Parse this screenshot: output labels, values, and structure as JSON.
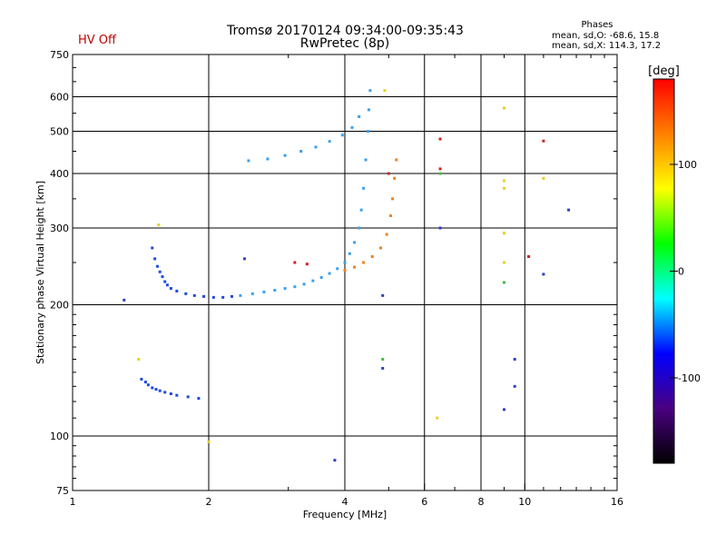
{
  "header": {
    "hv_status": "HV Off",
    "hv_color": "#c00000",
    "title": "Tromsø 20170124 09:34:00-09:35:43",
    "subtitle": "RwPretec (8p)"
  },
  "stats": {
    "title": "Phases",
    "line1": "mean, sd,O: -68.6, 15.8",
    "line2": "mean, sd,X: 114.3, 17.2"
  },
  "chart_data": {
    "type": "scatter",
    "xlabel": "Frequency [MHz]",
    "ylabel": "Stationary phase Virtual Height [km]",
    "x_scale": "log",
    "y_scale": "log",
    "xlim": [
      1,
      16
    ],
    "ylim": [
      75,
      750
    ],
    "x_ticks": [
      1,
      2,
      4,
      6,
      8,
      10,
      16
    ],
    "y_ticks": [
      75,
      100,
      200,
      300,
      400,
      500,
      600,
      750
    ],
    "grid": true,
    "colorbar": {
      "label": "[deg]",
      "range": [
        -180,
        180
      ],
      "ticks": [
        -100,
        0,
        100
      ],
      "colors": [
        "#000000",
        "#4b0082",
        "#0000ff",
        "#00ffff",
        "#00ff00",
        "#ffff00",
        "#ff8000",
        "#ff0000"
      ]
    },
    "series": [
      {
        "color": "#1e4ae0",
        "points": [
          [
            1.42,
            135
          ],
          [
            1.45,
            133
          ],
          [
            1.47,
            131
          ],
          [
            1.5,
            129
          ],
          [
            1.53,
            128
          ],
          [
            1.56,
            127
          ],
          [
            1.6,
            126
          ],
          [
            1.65,
            125
          ],
          [
            1.7,
            124
          ],
          [
            1.8,
            123
          ],
          [
            1.9,
            122
          ],
          [
            1.5,
            270
          ],
          [
            1.52,
            255
          ],
          [
            1.54,
            245
          ],
          [
            1.56,
            238
          ],
          [
            1.58,
            232
          ],
          [
            1.6,
            226
          ],
          [
            1.62,
            222
          ],
          [
            1.65,
            218
          ],
          [
            1.7,
            215
          ],
          [
            1.78,
            212
          ],
          [
            1.86,
            210
          ],
          [
            1.95,
            209
          ],
          [
            2.05,
            208
          ],
          [
            2.15,
            208
          ],
          [
            2.25,
            209
          ]
        ]
      },
      {
        "color": "#3aa0f0",
        "points": [
          [
            2.35,
            210
          ],
          [
            2.5,
            212
          ],
          [
            2.65,
            214
          ],
          [
            2.8,
            216
          ],
          [
            2.95,
            218
          ],
          [
            3.1,
            220
          ],
          [
            3.25,
            223
          ],
          [
            3.4,
            227
          ],
          [
            3.55,
            231
          ],
          [
            3.7,
            236
          ],
          [
            3.85,
            242
          ],
          [
            4.0,
            250
          ],
          [
            4.1,
            262
          ],
          [
            4.2,
            278
          ],
          [
            4.3,
            300
          ],
          [
            4.35,
            330
          ],
          [
            4.4,
            370
          ],
          [
            4.45,
            430
          ],
          [
            4.5,
            500
          ],
          [
            4.52,
            560
          ],
          [
            4.55,
            620
          ],
          [
            2.45,
            428
          ],
          [
            2.7,
            432
          ],
          [
            2.95,
            440
          ],
          [
            3.2,
            450
          ],
          [
            3.45,
            460
          ],
          [
            3.7,
            474
          ],
          [
            3.95,
            490
          ],
          [
            4.15,
            510
          ],
          [
            4.3,
            540
          ]
        ]
      },
      {
        "color": "#f08020",
        "points": [
          [
            4.0,
            240
          ],
          [
            4.2,
            244
          ],
          [
            4.4,
            250
          ],
          [
            4.6,
            258
          ],
          [
            4.8,
            270
          ],
          [
            4.95,
            290
          ],
          [
            5.05,
            320
          ],
          [
            5.1,
            350
          ],
          [
            5.15,
            390
          ],
          [
            5.2,
            430
          ]
        ]
      },
      {
        "color": "#d02020",
        "points": [
          [
            3.1,
            250
          ],
          [
            3.3,
            248
          ],
          [
            6.5,
            480
          ],
          [
            6.5,
            410
          ],
          [
            11.0,
            475
          ],
          [
            10.2,
            258
          ],
          [
            5.0,
            400
          ]
        ]
      },
      {
        "color": "#e8d020",
        "points": [
          [
            9.0,
            565
          ],
          [
            9.0,
            385
          ],
          [
            9.0,
            370
          ],
          [
            9.0,
            292
          ],
          [
            9.0,
            250
          ],
          [
            11.0,
            390
          ],
          [
            1.55,
            305
          ],
          [
            1.4,
            150
          ],
          [
            2.0,
            97
          ],
          [
            6.4,
            110
          ],
          [
            4.9,
            620
          ]
        ]
      },
      {
        "color": "#40c040",
        "points": [
          [
            9.0,
            225
          ],
          [
            6.5,
            400
          ],
          [
            4.85,
            150
          ]
        ]
      },
      {
        "color": "#3040c0",
        "points": [
          [
            1.3,
            205
          ],
          [
            11.0,
            235
          ],
          [
            12.5,
            330
          ],
          [
            9.5,
            130
          ],
          [
            9.5,
            150
          ],
          [
            9.0,
            115
          ],
          [
            4.85,
            210
          ],
          [
            4.85,
            143
          ],
          [
            3.8,
            88
          ],
          [
            2.4,
            255
          ],
          [
            6.5,
            300
          ]
        ]
      }
    ]
  }
}
